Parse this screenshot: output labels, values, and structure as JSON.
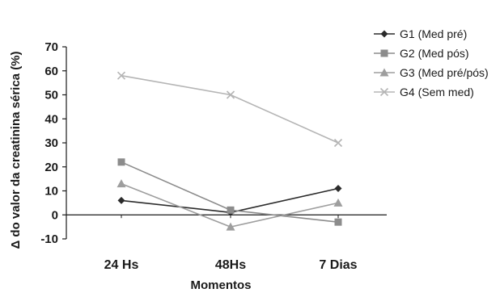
{
  "chart_data": {
    "type": "line",
    "title": "",
    "xlabel": "Momentos",
    "ylabel": "Δ do valor da creatinina sérica (%)",
    "categories": [
      "24 Hs",
      "48Hs",
      "7 Dias"
    ],
    "ylim": [
      -10,
      70
    ],
    "yticks": [
      -10,
      0,
      10,
      20,
      30,
      40,
      50,
      60,
      70
    ],
    "grid": false,
    "legend_position": "top-right",
    "series": [
      {
        "name": "G1 (Med pré)",
        "values": [
          6,
          1,
          11
        ],
        "color": "#2b2b2b",
        "marker": "diamond"
      },
      {
        "name": "G2 (Med pós)",
        "values": [
          22,
          2,
          -3
        ],
        "color": "#8c8c8c",
        "marker": "square"
      },
      {
        "name": "G3 (Med pré/pós)",
        "values": [
          13,
          -5,
          5
        ],
        "color": "#9e9e9e",
        "marker": "triangle"
      },
      {
        "name": "G4 (Sem med)",
        "values": [
          58,
          50,
          30
        ],
        "color": "#b5b5b5",
        "marker": "x"
      }
    ]
  }
}
